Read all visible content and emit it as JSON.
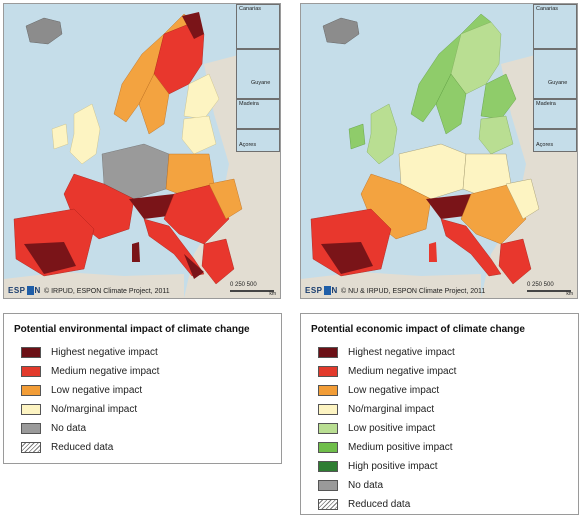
{
  "maps": [
    {
      "id": "environmental",
      "credit": "© IRPUD, ESPON Climate Project, 2011",
      "logo": {
        "pre": "ESP",
        "post": "N"
      },
      "scale": {
        "labels": "0  250  500",
        "unit": "km"
      },
      "insets": [
        "Canarias",
        "Guadeloupe Martinique",
        "Guyane",
        "Madeira",
        "Açores"
      ],
      "region_colors": [
        "#f3a340",
        "#e8372d",
        "#e8372d",
        "#7a1418",
        "#e8372d",
        "#f3a340",
        "#e8372d",
        "#7a1418",
        "#e8372d",
        "#f3a340"
      ]
    },
    {
      "id": "economic",
      "credit": "© NU & IRPUD, ESPON Climate Project, 2011",
      "logo": {
        "pre": "ESP",
        "post": "N"
      },
      "scale": {
        "labels": "0  250  500",
        "unit": "km"
      },
      "insets": [
        "Canarias",
        "Guadeloupe Martinique",
        "Guyane",
        "Madeira",
        "Açores"
      ],
      "region_colors": [
        "#8fcc6a",
        "#b9de92",
        "#f3a340",
        "#7a1418",
        "#e8372d",
        "#b9de92",
        "#f3a340",
        "#e8372d",
        "#e8372d",
        "#f3a340"
      ]
    }
  ],
  "legend_environmental": {
    "title": "Potential environmental impact of climate change",
    "items": [
      {
        "label": "Highest negative impact",
        "color": "#6b1016"
      },
      {
        "label": "Medium negative impact",
        "color": "#e23a2c"
      },
      {
        "label": "Low negative impact",
        "color": "#f29d37"
      },
      {
        "label": "No/marginal impact",
        "color": "#fdf4c2"
      },
      {
        "label": "No data",
        "color": "#9a9a9a"
      },
      {
        "label": "Reduced data",
        "color": "hatch"
      }
    ]
  },
  "legend_economic": {
    "title": "Potential economic impact of climate change",
    "items": [
      {
        "label": "Highest negative impact",
        "color": "#6b1016"
      },
      {
        "label": "Medium negative impact",
        "color": "#e23a2c"
      },
      {
        "label": "Low negative impact",
        "color": "#f29d37"
      },
      {
        "label": "No/marginal impact",
        "color": "#fdf4c2"
      },
      {
        "label": "Low positive impact",
        "color": "#b9de92"
      },
      {
        "label": "Medium positive impact",
        "color": "#6fbe4a"
      },
      {
        "label": "High positive impact",
        "color": "#2e7d32"
      },
      {
        "label": "No data",
        "color": "#9a9a9a"
      },
      {
        "label": "Reduced data",
        "color": "hatch"
      }
    ]
  }
}
